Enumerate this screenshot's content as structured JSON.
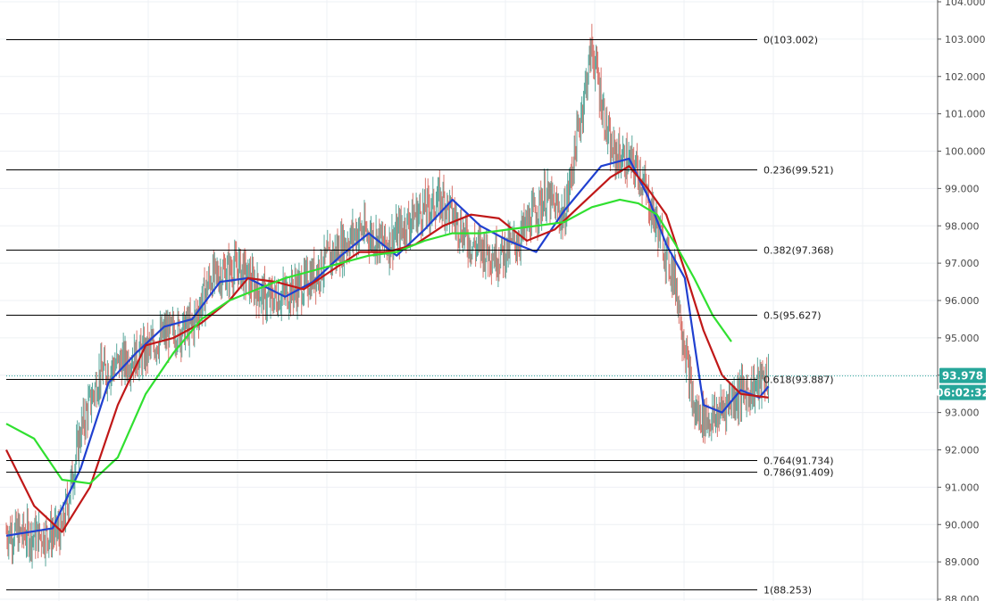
{
  "chart_data": {
    "type": "candlestick",
    "y_axis": {
      "side": "right",
      "min": 88,
      "max": 104,
      "ticks": [
        "104.000",
        "103.000",
        "102.000",
        "101.000",
        "100.000",
        "99.000",
        "98.000",
        "97.000",
        "96.000",
        "95.000",
        "94.000",
        "93.000",
        "92.000",
        "91.000",
        "90.000",
        "89.000",
        "88.000"
      ]
    },
    "grid": true,
    "last_price": {
      "value": "93.978",
      "countdown": "06:02:32",
      "color": "#26a69a"
    },
    "fibonacci_levels": [
      {
        "ratio": "0",
        "price": 103.002,
        "label": "0(103.002)"
      },
      {
        "ratio": "0.236",
        "price": 99.521,
        "label": "0.236(99.521)"
      },
      {
        "ratio": "0.382",
        "price": 97.368,
        "label": "0.382(97.368)"
      },
      {
        "ratio": "0.5",
        "price": 95.627,
        "label": "0.5(95.627)"
      },
      {
        "ratio": "0.618",
        "price": 93.887,
        "label": "0.618(93.887)"
      },
      {
        "ratio": "0.764",
        "price": 91.734,
        "label": "0.764(91.734)"
      },
      {
        "ratio": "0.786",
        "price": 91.409,
        "label": "0.786(91.409)"
      },
      {
        "ratio": "1",
        "price": 88.253,
        "label": "1(88.253)"
      }
    ],
    "price_path": [
      [
        0,
        89.8
      ],
      [
        0.03,
        89.7
      ],
      [
        0.06,
        89.8
      ],
      [
        0.08,
        92.5
      ],
      [
        0.1,
        94.0
      ],
      [
        0.12,
        94.3
      ],
      [
        0.15,
        94.6
      ],
      [
        0.17,
        95.1
      ],
      [
        0.2,
        95.3
      ],
      [
        0.22,
        96.6
      ],
      [
        0.25,
        96.9
      ],
      [
        0.28,
        96.0
      ],
      [
        0.32,
        96.4
      ],
      [
        0.35,
        97.2
      ],
      [
        0.38,
        97.9
      ],
      [
        0.41,
        97.5
      ],
      [
        0.44,
        98.3
      ],
      [
        0.47,
        98.7
      ],
      [
        0.5,
        97.5
      ],
      [
        0.53,
        97.2
      ],
      [
        0.55,
        97.6
      ],
      [
        0.58,
        98.8
      ],
      [
        0.6,
        98.2
      ],
      [
        0.63,
        102.8
      ],
      [
        0.65,
        100.0
      ],
      [
        0.68,
        99.5
      ],
      [
        0.7,
        98.0
      ],
      [
        0.72,
        96.5
      ],
      [
        0.74,
        93.0
      ],
      [
        0.76,
        92.8
      ],
      [
        0.78,
        93.4
      ],
      [
        0.8,
        93.6
      ],
      [
        0.82,
        93.95
      ]
    ],
    "moving_averages": [
      {
        "color": "#2040d0",
        "values": [
          [
            0,
            89.7
          ],
          [
            0.05,
            89.9
          ],
          [
            0.08,
            91.5
          ],
          [
            0.11,
            93.8
          ],
          [
            0.14,
            94.6
          ],
          [
            0.17,
            95.3
          ],
          [
            0.2,
            95.5
          ],
          [
            0.23,
            96.5
          ],
          [
            0.26,
            96.6
          ],
          [
            0.3,
            96.1
          ],
          [
            0.33,
            96.5
          ],
          [
            0.36,
            97.2
          ],
          [
            0.39,
            97.8
          ],
          [
            0.42,
            97.2
          ],
          [
            0.45,
            97.9
          ],
          [
            0.48,
            98.7
          ],
          [
            0.51,
            98.0
          ],
          [
            0.54,
            97.6
          ],
          [
            0.57,
            97.3
          ],
          [
            0.6,
            98.4
          ],
          [
            0.62,
            99.0
          ],
          [
            0.64,
            99.6
          ],
          [
            0.67,
            99.8
          ],
          [
            0.69,
            98.8
          ],
          [
            0.71,
            97.5
          ],
          [
            0.73,
            96.6
          ],
          [
            0.75,
            93.2
          ],
          [
            0.77,
            93.0
          ],
          [
            0.79,
            93.6
          ],
          [
            0.81,
            93.4
          ],
          [
            0.82,
            93.7
          ]
        ]
      },
      {
        "color": "#c01818",
        "values": [
          [
            0,
            92.0
          ],
          [
            0.03,
            90.5
          ],
          [
            0.06,
            89.8
          ],
          [
            0.09,
            91.0
          ],
          [
            0.12,
            93.2
          ],
          [
            0.15,
            94.8
          ],
          [
            0.18,
            95.0
          ],
          [
            0.21,
            95.4
          ],
          [
            0.24,
            96.0
          ],
          [
            0.26,
            96.6
          ],
          [
            0.29,
            96.5
          ],
          [
            0.32,
            96.3
          ],
          [
            0.35,
            96.8
          ],
          [
            0.38,
            97.3
          ],
          [
            0.41,
            97.3
          ],
          [
            0.44,
            97.5
          ],
          [
            0.47,
            98.0
          ],
          [
            0.5,
            98.3
          ],
          [
            0.53,
            98.2
          ],
          [
            0.56,
            97.6
          ],
          [
            0.59,
            97.9
          ],
          [
            0.62,
            98.6
          ],
          [
            0.65,
            99.3
          ],
          [
            0.67,
            99.6
          ],
          [
            0.69,
            99.0
          ],
          [
            0.71,
            98.3
          ],
          [
            0.73,
            96.8
          ],
          [
            0.75,
            95.2
          ],
          [
            0.77,
            94.0
          ],
          [
            0.79,
            93.5
          ],
          [
            0.82,
            93.4
          ]
        ]
      },
      {
        "color": "#30e030",
        "values": [
          [
            0,
            92.7
          ],
          [
            0.03,
            92.3
          ],
          [
            0.06,
            91.2
          ],
          [
            0.09,
            91.1
          ],
          [
            0.12,
            91.8
          ],
          [
            0.15,
            93.5
          ],
          [
            0.18,
            94.6
          ],
          [
            0.21,
            95.5
          ],
          [
            0.24,
            96.0
          ],
          [
            0.27,
            96.3
          ],
          [
            0.3,
            96.6
          ],
          [
            0.33,
            96.8
          ],
          [
            0.36,
            97.0
          ],
          [
            0.39,
            97.2
          ],
          [
            0.42,
            97.3
          ],
          [
            0.45,
            97.6
          ],
          [
            0.48,
            97.8
          ],
          [
            0.51,
            97.8
          ],
          [
            0.54,
            97.9
          ],
          [
            0.57,
            98.0
          ],
          [
            0.6,
            98.1
          ],
          [
            0.63,
            98.5
          ],
          [
            0.66,
            98.7
          ],
          [
            0.68,
            98.6
          ],
          [
            0.7,
            98.3
          ],
          [
            0.72,
            97.5
          ],
          [
            0.74,
            96.6
          ],
          [
            0.76,
            95.6
          ],
          [
            0.78,
            94.9
          ]
        ]
      }
    ]
  }
}
